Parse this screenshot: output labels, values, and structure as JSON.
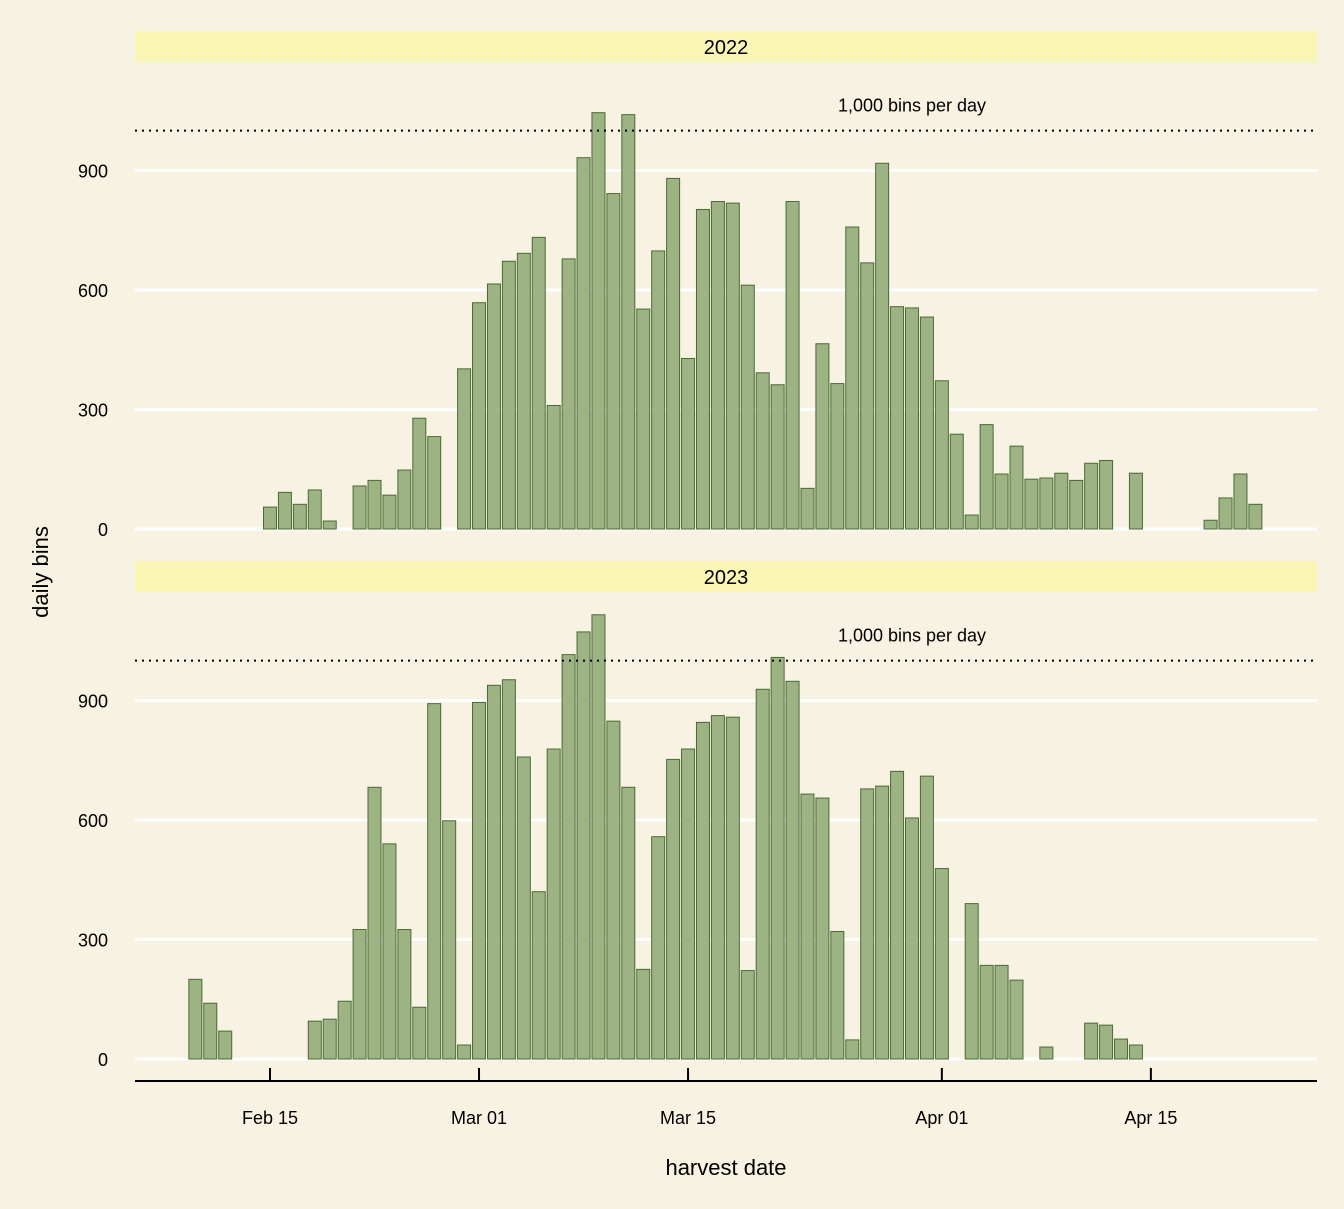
{
  "chart_data": {
    "type": "bar",
    "xlabel": "harvest date",
    "ylabel": "daily bins",
    "x_ticks": [
      "Feb 15",
      "Mar 01",
      "Mar 15",
      "Apr 01",
      "Apr 15"
    ],
    "y_ticks": [
      0,
      300,
      600,
      900
    ],
    "ylim": [
      -60,
      1150
    ],
    "grid": "horizontal",
    "reference_line": {
      "value": 1000,
      "label": "1,000 bins per day"
    },
    "colors": {
      "background": "#f7f2e1",
      "strip": "#f9f5b4",
      "bar_fill": "#9db384",
      "bar_stroke": "#4a6a34",
      "grid": "#ffffff"
    },
    "panels": [
      {
        "strip": "2022",
        "start_date": "Feb 15",
        "bars": [
          {
            "day": 0,
            "value": 55
          },
          {
            "day": 1,
            "value": 92
          },
          {
            "day": 2,
            "value": 62
          },
          {
            "day": 3,
            "value": 98
          },
          {
            "day": 4,
            "value": 20
          },
          {
            "day": 6,
            "value": 108
          },
          {
            "day": 7,
            "value": 122
          },
          {
            "day": 8,
            "value": 85
          },
          {
            "day": 9,
            "value": 148
          },
          {
            "day": 10,
            "value": 278
          },
          {
            "day": 11,
            "value": 232
          },
          {
            "day": 13,
            "value": 402
          },
          {
            "day": 14,
            "value": 568
          },
          {
            "day": 15,
            "value": 615
          },
          {
            "day": 16,
            "value": 672
          },
          {
            "day": 17,
            "value": 692
          },
          {
            "day": 18,
            "value": 732
          },
          {
            "day": 19,
            "value": 310
          },
          {
            "day": 20,
            "value": 678
          },
          {
            "day": 21,
            "value": 932
          },
          {
            "day": 22,
            "value": 1045
          },
          {
            "day": 23,
            "value": 842
          },
          {
            "day": 24,
            "value": 1040
          },
          {
            "day": 25,
            "value": 552
          },
          {
            "day": 26,
            "value": 698
          },
          {
            "day": 27,
            "value": 880
          },
          {
            "day": 28,
            "value": 428
          },
          {
            "day": 29,
            "value": 802
          },
          {
            "day": 30,
            "value": 822
          },
          {
            "day": 31,
            "value": 818
          },
          {
            "day": 32,
            "value": 612
          },
          {
            "day": 33,
            "value": 392
          },
          {
            "day": 34,
            "value": 362
          },
          {
            "day": 35,
            "value": 822
          },
          {
            "day": 36,
            "value": 102
          },
          {
            "day": 37,
            "value": 465
          },
          {
            "day": 38,
            "value": 365
          },
          {
            "day": 39,
            "value": 758
          },
          {
            "day": 40,
            "value": 668
          },
          {
            "day": 41,
            "value": 918
          },
          {
            "day": 42,
            "value": 558
          },
          {
            "day": 43,
            "value": 555
          },
          {
            "day": 44,
            "value": 532
          },
          {
            "day": 45,
            "value": 372
          },
          {
            "day": 46,
            "value": 238
          },
          {
            "day": 47,
            "value": 35
          },
          {
            "day": 48,
            "value": 262
          },
          {
            "day": 49,
            "value": 138
          },
          {
            "day": 50,
            "value": 208
          },
          {
            "day": 51,
            "value": 125
          },
          {
            "day": 52,
            "value": 128
          },
          {
            "day": 53,
            "value": 140
          },
          {
            "day": 54,
            "value": 122
          },
          {
            "day": 55,
            "value": 165
          },
          {
            "day": 56,
            "value": 172
          },
          {
            "day": 58,
            "value": 140
          },
          {
            "day": 63,
            "value": 22
          },
          {
            "day": 64,
            "value": 78
          },
          {
            "day": 65,
            "value": 138
          },
          {
            "day": 66,
            "value": 62
          }
        ]
      },
      {
        "strip": "2023",
        "start_date": "Feb 15",
        "bars": [
          {
            "day": -5,
            "value": 200
          },
          {
            "day": -4,
            "value": 140
          },
          {
            "day": -3,
            "value": 70
          },
          {
            "day": 3,
            "value": 95
          },
          {
            "day": 4,
            "value": 100
          },
          {
            "day": 5,
            "value": 145
          },
          {
            "day": 6,
            "value": 325
          },
          {
            "day": 7,
            "value": 682
          },
          {
            "day": 8,
            "value": 540
          },
          {
            "day": 9,
            "value": 325
          },
          {
            "day": 10,
            "value": 130
          },
          {
            "day": 11,
            "value": 892
          },
          {
            "day": 12,
            "value": 598
          },
          {
            "day": 13,
            "value": 35
          },
          {
            "day": 14,
            "value": 895
          },
          {
            "day": 15,
            "value": 938
          },
          {
            "day": 16,
            "value": 952
          },
          {
            "day": 17,
            "value": 758
          },
          {
            "day": 18,
            "value": 420
          },
          {
            "day": 19,
            "value": 778
          },
          {
            "day": 20,
            "value": 1015
          },
          {
            "day": 21,
            "value": 1072
          },
          {
            "day": 22,
            "value": 1115
          },
          {
            "day": 23,
            "value": 848
          },
          {
            "day": 24,
            "value": 682
          },
          {
            "day": 25,
            "value": 225
          },
          {
            "day": 26,
            "value": 558
          },
          {
            "day": 27,
            "value": 752
          },
          {
            "day": 28,
            "value": 778
          },
          {
            "day": 29,
            "value": 845
          },
          {
            "day": 30,
            "value": 862
          },
          {
            "day": 31,
            "value": 858
          },
          {
            "day": 32,
            "value": 222
          },
          {
            "day": 33,
            "value": 928
          },
          {
            "day": 34,
            "value": 1008
          },
          {
            "day": 35,
            "value": 948
          },
          {
            "day": 36,
            "value": 665
          },
          {
            "day": 37,
            "value": 655
          },
          {
            "day": 38,
            "value": 320
          },
          {
            "day": 39,
            "value": 48
          },
          {
            "day": 40,
            "value": 678
          },
          {
            "day": 41,
            "value": 685
          },
          {
            "day": 42,
            "value": 722
          },
          {
            "day": 43,
            "value": 605
          },
          {
            "day": 44,
            "value": 710
          },
          {
            "day": 45,
            "value": 478
          },
          {
            "day": 47,
            "value": 390
          },
          {
            "day": 48,
            "value": 235
          },
          {
            "day": 49,
            "value": 235
          },
          {
            "day": 50,
            "value": 198
          },
          {
            "day": 52,
            "value": 30
          },
          {
            "day": 55,
            "value": 90
          },
          {
            "day": 56,
            "value": 85
          },
          {
            "day": 57,
            "value": 50
          },
          {
            "day": 58,
            "value": 35
          }
        ]
      }
    ]
  }
}
